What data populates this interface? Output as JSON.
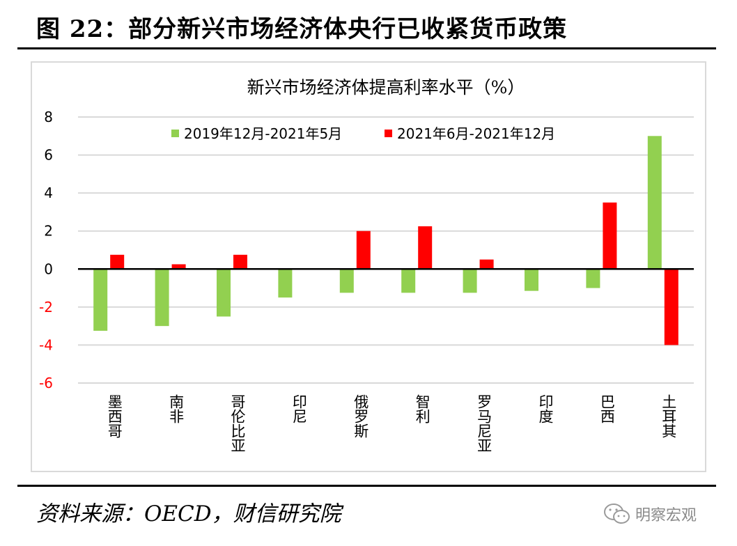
{
  "figure_title": "图 22：部分新兴市场经济体央行已收紧货币政策",
  "source_text": "资料来源：OECD，财信研究院",
  "watermark": {
    "text": "明察宏观",
    "icon": "wechat-icon"
  },
  "colors": {
    "series1": "#92d050",
    "series2": "#ff0000",
    "negative_tick": "#ff0000",
    "grid": "#d9d9d9",
    "axis": "#000000"
  },
  "chart_data": {
    "type": "bar",
    "title": "新兴市场经济体提高利率水平（%）",
    "categories": [
      "墨西哥",
      "南非",
      "哥伦比亚",
      "印尼",
      "俄罗斯",
      "智利",
      "罗马尼亚",
      "印度",
      "巴西",
      "土耳其"
    ],
    "series": [
      {
        "name": "2019年12月-2021年5月",
        "values": [
          -3.25,
          -3.0,
          -2.5,
          -1.5,
          -1.25,
          -1.25,
          -1.25,
          -1.15,
          -1.0,
          7.0
        ]
      },
      {
        "name": "2021年6月-2021年12月",
        "values": [
          0.75,
          0.25,
          0.75,
          0,
          2.0,
          2.25,
          0.5,
          0,
          3.5,
          -4.0
        ]
      }
    ],
    "ylim": [
      -6,
      8
    ],
    "yticks": [
      8,
      6,
      4,
      2,
      0,
      -2,
      -4,
      -6
    ],
    "ytick_labels": [
      "8",
      "6",
      "4",
      "2",
      "0",
      "-2",
      "-4",
      "-6"
    ],
    "grid": true,
    "legend_position": "top"
  }
}
